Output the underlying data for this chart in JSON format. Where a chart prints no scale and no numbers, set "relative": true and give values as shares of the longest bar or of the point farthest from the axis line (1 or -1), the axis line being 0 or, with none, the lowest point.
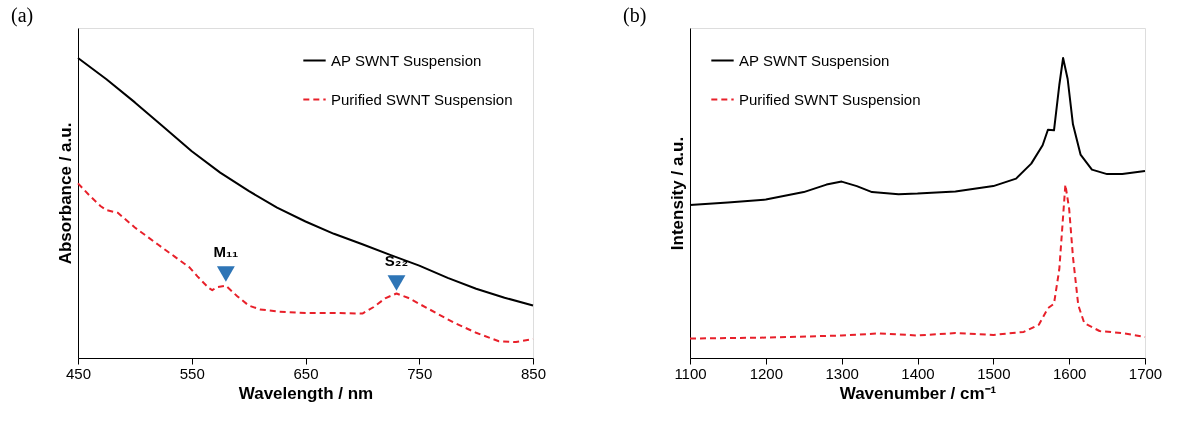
{
  "chart_data": [
    {
      "type": "line",
      "title": "(a)",
      "xlabel": "Wavelength / nm",
      "ylabel": "Absorbance / a.u.",
      "relative": true,
      "xlim": [
        450,
        850
      ],
      "xticks": [
        450,
        550,
        650,
        750,
        850
      ],
      "grid": false,
      "legend": "top right",
      "series": [
        {
          "name": "AP SWNT Suspension",
          "color": "#000000",
          "line_style": "solid",
          "x": [
            450,
            475,
            500,
            525,
            550,
            575,
            600,
            625,
            650,
            675,
            700,
            725,
            750,
            775,
            800,
            825,
            850
          ],
          "values": [
            1.0,
            0.929,
            0.852,
            0.771,
            0.689,
            0.618,
            0.557,
            0.501,
            0.455,
            0.414,
            0.379,
            0.343,
            0.308,
            0.267,
            0.231,
            0.201,
            0.175
          ]
        },
        {
          "name": "Purified SWNT Suspension",
          "color": "#e8202a",
          "line_style": "dashed",
          "x": [
            450,
            460,
            470,
            475,
            485,
            500,
            520,
            535,
            548,
            555,
            565,
            568,
            572,
            580,
            590,
            600,
            610,
            625,
            650,
            675,
            700,
            710,
            720,
            730,
            740,
            760,
            780,
            800,
            820,
            835,
            850
          ],
          "values": [
            0.582,
            0.542,
            0.506,
            0.493,
            0.484,
            0.435,
            0.379,
            0.338,
            0.302,
            0.272,
            0.233,
            0.226,
            0.236,
            0.241,
            0.206,
            0.175,
            0.162,
            0.155,
            0.15,
            0.15,
            0.148,
            0.17,
            0.199,
            0.215,
            0.201,
            0.16,
            0.119,
            0.084,
            0.056,
            0.053,
            0.063
          ]
        }
      ],
      "annotations": [
        {
          "text": "M₁₁",
          "x": 580,
          "y": 0.28
        },
        {
          "text": "S₂₂",
          "x": 730,
          "y": 0.25
        }
      ]
    },
    {
      "type": "line",
      "title": "(b)",
      "xlabel": "Wavenumber / cm⁻¹",
      "ylabel": "Intensity / a.u.",
      "relative": true,
      "xlim": [
        1100,
        1700
      ],
      "xticks": [
        1100,
        1200,
        1300,
        1400,
        1500,
        1600,
        1700
      ],
      "grid": false,
      "legend": "top left",
      "series": [
        {
          "name": "AP SWNT Suspension",
          "color": "#000000",
          "line_style": "solid",
          "x": [
            1100,
            1150,
            1200,
            1250,
            1280,
            1300,
            1320,
            1340,
            1375,
            1400,
            1450,
            1500,
            1530,
            1550,
            1565,
            1572,
            1580,
            1587,
            1592,
            1598,
            1605,
            1615,
            1630,
            1650,
            1670,
            1700
          ],
          "values": [
            0.51,
            0.518,
            0.528,
            0.553,
            0.578,
            0.588,
            0.573,
            0.553,
            0.546,
            0.548,
            0.555,
            0.573,
            0.598,
            0.648,
            0.709,
            0.761,
            0.759,
            0.91,
            1.0,
            0.93,
            0.779,
            0.678,
            0.628,
            0.613,
            0.613,
            0.623
          ]
        },
        {
          "name": "Purified SWNT Suspension",
          "color": "#e8202a",
          "line_style": "dashed",
          "x": [
            1100,
            1200,
            1300,
            1350,
            1400,
            1450,
            1500,
            1540,
            1560,
            1572,
            1580,
            1587,
            1595,
            1600,
            1605,
            1612,
            1620,
            1640,
            1670,
            1700
          ],
          "values": [
            0.065,
            0.068,
            0.075,
            0.082,
            0.075,
            0.083,
            0.077,
            0.087,
            0.111,
            0.166,
            0.181,
            0.296,
            0.578,
            0.497,
            0.337,
            0.176,
            0.116,
            0.09,
            0.083,
            0.07
          ]
        }
      ]
    }
  ]
}
